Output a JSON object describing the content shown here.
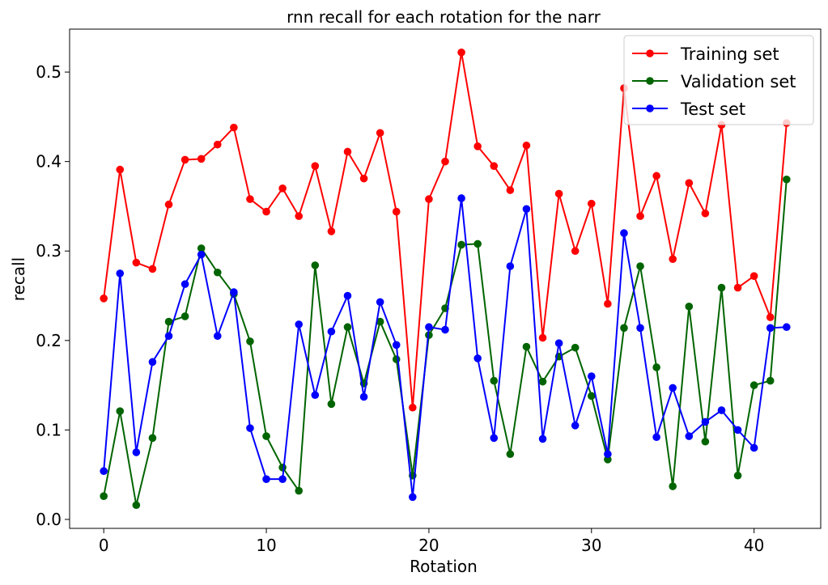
{
  "chart_data": {
    "type": "line",
    "title": "rnn recall for each rotation for the narr",
    "xlabel": "Rotation",
    "ylabel": "recall",
    "xlim": [
      -2.1,
      44.1
    ],
    "ylim": [
      -0.01,
      0.548
    ],
    "xticks": [
      0,
      10,
      20,
      30,
      40
    ],
    "yticks": [
      0.0,
      0.1,
      0.2,
      0.3,
      0.4,
      0.5
    ],
    "xtick_labels": [
      "0",
      "10",
      "20",
      "30",
      "40"
    ],
    "ytick_labels": [
      "0.0",
      "0.1",
      "0.2",
      "0.3",
      "0.4",
      "0.5"
    ],
    "grid": false,
    "legend_position": "top-right",
    "x": [
      0,
      1,
      2,
      3,
      4,
      5,
      6,
      7,
      8,
      9,
      10,
      11,
      12,
      13,
      14,
      15,
      16,
      17,
      18,
      19,
      20,
      21,
      22,
      23,
      24,
      25,
      26,
      27,
      28,
      29,
      30,
      31,
      32,
      33,
      34,
      35,
      36,
      37,
      38,
      39,
      40,
      41,
      42
    ],
    "series": [
      {
        "name": "Training set",
        "color": "#ff0000",
        "values": [
          0.247,
          0.391,
          0.287,
          0.28,
          0.352,
          0.402,
          0.403,
          0.419,
          0.438,
          0.358,
          0.344,
          0.37,
          0.339,
          0.395,
          0.322,
          0.411,
          0.381,
          0.432,
          0.344,
          0.125,
          0.358,
          0.4,
          0.522,
          0.417,
          0.395,
          0.368,
          0.418,
          0.203,
          0.364,
          0.3,
          0.353,
          0.241,
          0.482,
          0.339,
          0.384,
          0.291,
          0.376,
          0.342,
          0.441,
          0.259,
          0.272,
          0.226,
          0.443
        ]
      },
      {
        "name": "Validation set",
        "color": "#006400",
        "values": [
          0.026,
          0.121,
          0.016,
          0.091,
          0.221,
          0.227,
          0.303,
          0.276,
          0.252,
          0.199,
          0.093,
          0.058,
          0.032,
          0.284,
          0.129,
          0.215,
          0.152,
          0.221,
          0.179,
          0.049,
          0.206,
          0.236,
          0.307,
          0.308,
          0.155,
          0.073,
          0.193,
          0.154,
          0.182,
          0.192,
          0.138,
          0.067,
          0.214,
          0.283,
          0.17,
          0.037,
          0.238,
          0.087,
          0.259,
          0.049,
          0.15,
          0.155,
          0.38
        ]
      },
      {
        "name": "Test set",
        "color": "#0000ff",
        "values": [
          0.054,
          0.275,
          0.075,
          0.176,
          0.205,
          0.263,
          0.296,
          0.205,
          0.254,
          0.102,
          0.045,
          0.045,
          0.218,
          0.139,
          0.21,
          0.25,
          0.137,
          0.243,
          0.195,
          0.025,
          0.215,
          0.212,
          0.359,
          0.18,
          0.091,
          0.283,
          0.347,
          0.09,
          0.197,
          0.105,
          0.16,
          0.073,
          0.32,
          0.214,
          0.092,
          0.147,
          0.093,
          0.109,
          0.122,
          0.1,
          0.08,
          0.214,
          0.215
        ]
      }
    ]
  }
}
